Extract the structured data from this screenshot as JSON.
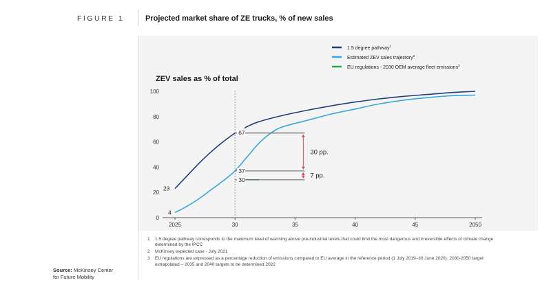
{
  "figure": {
    "label": "FIGURE 1",
    "title": "Projected market share of ZE trucks, % of new sales"
  },
  "source": {
    "label": "Source:",
    "text_line1": "McKinsey Center",
    "text_line2": "for Future Mobility"
  },
  "notes": [
    {
      "num": "1",
      "text": "1.5 degree pathway corresponds to the maximum level of warming above pre-industrial levels that could limit the most dangerous and irreversible effects of climate change determined by the IPCC"
    },
    {
      "num": "2",
      "text": "McKinsey expected case - July 2021"
    },
    {
      "num": "3",
      "text": "EU regulations are expressed as a percentage reduction of emissions compared to EU average in the reference period (1 July 2019–30 June 2020). 2030-2050 target extrapolated – 2035 and 2040 targets to be determined 2022"
    }
  ],
  "chart_data": {
    "type": "line",
    "title": "ZEV sales as % of total",
    "xlabel": "",
    "ylabel": "",
    "xlim": [
      2025,
      2050
    ],
    "ylim": [
      0,
      100
    ],
    "x_ticks": [
      2025,
      2030,
      2035,
      2040,
      2045,
      2050
    ],
    "x_tick_labels": [
      "2025",
      "30",
      "35",
      "40",
      "45",
      "2050"
    ],
    "y_ticks": [
      0,
      20,
      40,
      60,
      80,
      100
    ],
    "y_tick_labels": [
      "0",
      "20",
      "40",
      "60",
      "80",
      "100"
    ],
    "legend_position": "top-right",
    "series": [
      {
        "name": "1.5 degree pathway",
        "marker": "1",
        "color": "#1f3f7a",
        "x": [
          2025,
          2026,
          2027,
          2028,
          2029,
          2030,
          2031,
          2032,
          2034,
          2036,
          2038,
          2040,
          2042,
          2044,
          2046,
          2048,
          2050
        ],
        "y": [
          23,
          33,
          43,
          52,
          60,
          67,
          72,
          76,
          81,
          85,
          88.5,
          91.5,
          94,
          96,
          97.5,
          99,
          100
        ]
      },
      {
        "name": "Estimated ZEV sales trajectory",
        "marker": "2",
        "color": "#3aa6dc",
        "x": [
          2025,
          2026,
          2027,
          2028,
          2029,
          2030,
          2031,
          2032,
          2033,
          2034,
          2036,
          2038,
          2040,
          2042,
          2044,
          2046,
          2048,
          2050
        ],
        "y": [
          4,
          9,
          15,
          22,
          29,
          37,
          48,
          59,
          67,
          72,
          77,
          82,
          86,
          90,
          93,
          95,
          96.5,
          97
        ]
      },
      {
        "name": "EU regulations - 2030 OEM average fleet emissions",
        "marker": "3",
        "color": "#27a85a",
        "x": [
          2030.7,
          2032
        ],
        "y": [
          30,
          30
        ]
      }
    ],
    "data_labels": [
      {
        "text": "23",
        "x": 2025,
        "y": 23
      },
      {
        "text": "4",
        "x": 2025,
        "y": 4
      },
      {
        "text": "67",
        "x": 2030,
        "y": 67
      },
      {
        "text": "37",
        "x": 2030,
        "y": 37
      },
      {
        "text": "30",
        "x": 2030,
        "y": 30
      }
    ],
    "reference_line": {
      "x": 2030,
      "style": "dashed"
    },
    "annotations": [
      {
        "text": "30 pp.",
        "from": 67,
        "to": 37
      },
      {
        "text": "7 pp.",
        "from": 37,
        "to": 30
      }
    ],
    "colors": {
      "axis": "#555555",
      "bracket": "#6e6e6e",
      "arrow": "#e24a55",
      "refline": "#9a9a9a"
    }
  }
}
